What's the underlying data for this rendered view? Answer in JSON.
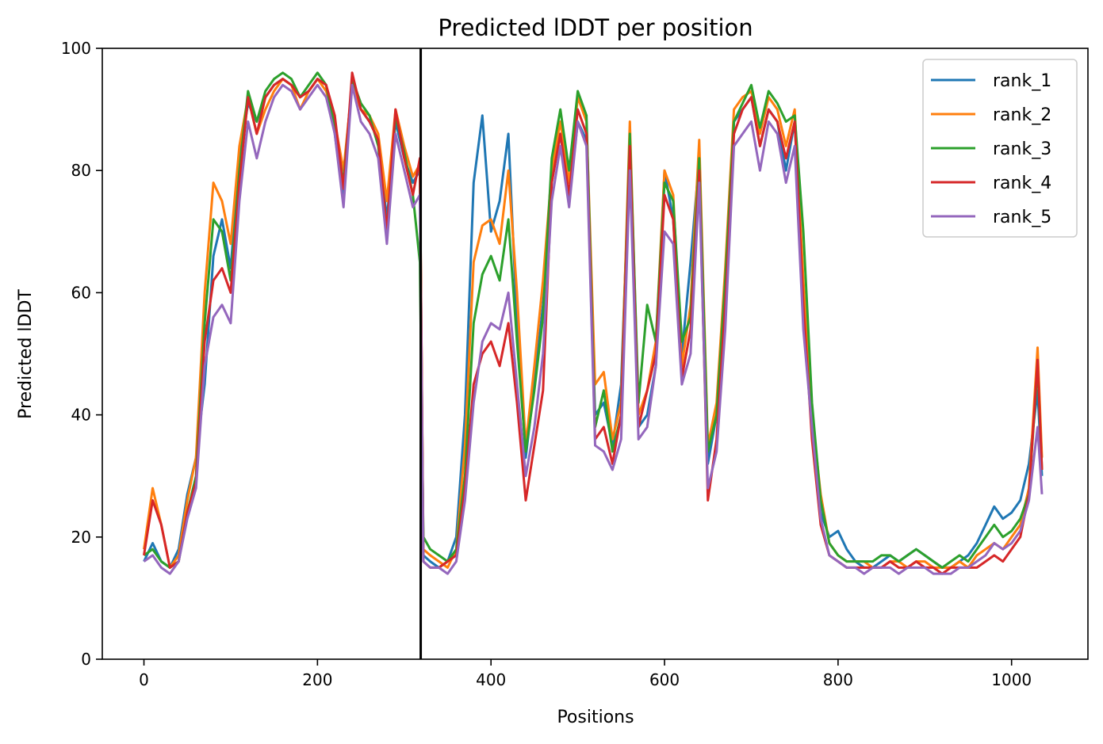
{
  "chart_data": {
    "type": "line",
    "title": "Predicted lDDT per position",
    "xlabel": "Positions",
    "ylabel": "Predicted lDDT",
    "xlim": [
      -48,
      1088
    ],
    "ylim": [
      0,
      100
    ],
    "xticks": [
      0,
      200,
      400,
      600,
      800,
      1000
    ],
    "yticks": [
      0,
      20,
      40,
      60,
      80,
      100
    ],
    "grid": false,
    "legend": "top-right",
    "vline_x": 319,
    "series": [
      {
        "name": "rank_1",
        "color": "#1f77b4",
        "x": [
          0,
          10,
          20,
          30,
          40,
          50,
          60,
          70,
          80,
          90,
          100,
          110,
          120,
          130,
          140,
          150,
          160,
          170,
          180,
          190,
          200,
          210,
          220,
          230,
          240,
          250,
          260,
          270,
          280,
          290,
          300,
          310,
          318,
          322,
          330,
          340,
          350,
          360,
          370,
          380,
          390,
          400,
          410,
          420,
          430,
          440,
          450,
          460,
          470,
          480,
          490,
          500,
          510,
          520,
          530,
          540,
          550,
          560,
          570,
          580,
          590,
          600,
          610,
          620,
          630,
          640,
          650,
          660,
          670,
          680,
          690,
          700,
          710,
          720,
          730,
          740,
          750,
          760,
          770,
          780,
          790,
          800,
          810,
          820,
          830,
          840,
          850,
          860,
          870,
          880,
          890,
          900,
          910,
          920,
          930,
          940,
          950,
          960,
          970,
          980,
          990,
          1000,
          1010,
          1020,
          1030,
          1035
        ],
        "y": [
          16,
          19,
          16,
          15,
          18,
          27,
          33,
          45,
          66,
          72,
          64,
          82,
          91,
          88,
          92,
          94,
          95,
          94,
          92,
          93,
          95,
          94,
          86,
          75,
          95,
          90,
          88,
          85,
          72,
          88,
          82,
          78,
          80,
          17,
          16,
          15,
          16,
          20,
          40,
          78,
          89,
          70,
          75,
          86,
          55,
          33,
          45,
          58,
          78,
          86,
          75,
          88,
          85,
          40,
          42,
          35,
          45,
          84,
          38,
          40,
          48,
          80,
          72,
          50,
          65,
          82,
          32,
          40,
          60,
          88,
          90,
          92,
          84,
          90,
          88,
          80,
          88,
          60,
          38,
          24,
          20,
          21,
          18,
          16,
          15,
          15,
          16,
          17,
          16,
          17,
          18,
          17,
          16,
          15,
          15,
          16,
          17,
          19,
          22,
          25,
          23,
          24,
          26,
          32,
          44,
          30
        ]
      },
      {
        "name": "rank_2",
        "color": "#ff7f0e",
        "x": [
          0,
          10,
          20,
          30,
          40,
          50,
          60,
          70,
          80,
          90,
          100,
          110,
          120,
          130,
          140,
          150,
          160,
          170,
          180,
          190,
          200,
          210,
          220,
          230,
          240,
          250,
          260,
          270,
          280,
          290,
          300,
          310,
          318,
          322,
          330,
          340,
          350,
          360,
          370,
          380,
          390,
          400,
          410,
          420,
          430,
          440,
          450,
          460,
          470,
          480,
          490,
          500,
          510,
          520,
          530,
          540,
          550,
          560,
          570,
          580,
          590,
          600,
          610,
          620,
          630,
          640,
          650,
          660,
          670,
          680,
          690,
          700,
          710,
          720,
          730,
          740,
          750,
          760,
          770,
          780,
          790,
          800,
          810,
          820,
          830,
          840,
          850,
          860,
          870,
          880,
          890,
          900,
          910,
          920,
          930,
          940,
          950,
          960,
          970,
          980,
          990,
          1000,
          1010,
          1020,
          1030,
          1035
        ],
        "y": [
          18,
          28,
          22,
          15,
          17,
          26,
          33,
          60,
          78,
          75,
          68,
          84,
          92,
          86,
          90,
          93,
          95,
          94,
          90,
          93,
          95,
          93,
          88,
          80,
          94,
          90,
          89,
          86,
          75,
          90,
          84,
          79,
          81,
          18,
          17,
          16,
          15,
          18,
          35,
          65,
          71,
          72,
          68,
          80,
          60,
          35,
          48,
          62,
          80,
          88,
          78,
          92,
          88,
          45,
          47,
          36,
          42,
          88,
          40,
          44,
          52,
          80,
          76,
          48,
          58,
          85,
          35,
          42,
          64,
          90,
          92,
          93,
          86,
          92,
          90,
          84,
          90,
          62,
          40,
          27,
          19,
          17,
          16,
          16,
          16,
          15,
          15,
          16,
          16,
          15,
          16,
          16,
          15,
          15,
          15,
          16,
          15,
          17,
          18,
          19,
          18,
          20,
          22,
          28,
          51,
          33
        ]
      },
      {
        "name": "rank_3",
        "color": "#2ca02c",
        "x": [
          0,
          10,
          20,
          30,
          40,
          50,
          60,
          70,
          80,
          90,
          100,
          110,
          120,
          130,
          140,
          150,
          160,
          170,
          180,
          190,
          200,
          210,
          220,
          230,
          240,
          250,
          260,
          270,
          280,
          290,
          300,
          310,
          318,
          322,
          330,
          340,
          350,
          360,
          370,
          380,
          390,
          400,
          410,
          420,
          430,
          440,
          450,
          460,
          470,
          480,
          490,
          500,
          510,
          520,
          530,
          540,
          550,
          560,
          570,
          580,
          590,
          600,
          610,
          620,
          630,
          640,
          650,
          660,
          670,
          680,
          690,
          700,
          710,
          720,
          730,
          740,
          750,
          760,
          770,
          780,
          790,
          800,
          810,
          820,
          830,
          840,
          850,
          860,
          870,
          880,
          890,
          900,
          910,
          920,
          930,
          940,
          950,
          960,
          970,
          980,
          990,
          1000,
          1010,
          1020,
          1030,
          1035
        ],
        "y": [
          17,
          18,
          16,
          15,
          16,
          24,
          30,
          55,
          72,
          70,
          62,
          80,
          93,
          88,
          93,
          95,
          96,
          95,
          92,
          94,
          96,
          94,
          87,
          78,
          95,
          91,
          89,
          84,
          70,
          89,
          83,
          76,
          65,
          20,
          18,
          17,
          16,
          18,
          30,
          55,
          63,
          66,
          62,
          72,
          52,
          34,
          44,
          56,
          82,
          90,
          80,
          93,
          89,
          38,
          44,
          34,
          40,
          86,
          42,
          58,
          52,
          78,
          75,
          52,
          56,
          82,
          34,
          40,
          62,
          88,
          91,
          94,
          87,
          93,
          91,
          88,
          89,
          70,
          42,
          26,
          19,
          17,
          16,
          16,
          16,
          16,
          17,
          17,
          16,
          17,
          18,
          17,
          16,
          15,
          16,
          17,
          16,
          18,
          20,
          22,
          20,
          21,
          23,
          27,
          48,
          31
        ]
      },
      {
        "name": "rank_4",
        "color": "#d62728",
        "x": [
          0,
          10,
          20,
          30,
          40,
          50,
          60,
          70,
          80,
          90,
          100,
          110,
          120,
          130,
          140,
          150,
          160,
          170,
          180,
          190,
          200,
          210,
          220,
          230,
          240,
          250,
          260,
          270,
          280,
          290,
          300,
          310,
          318,
          322,
          330,
          340,
          350,
          360,
          370,
          380,
          390,
          400,
          410,
          420,
          430,
          440,
          450,
          460,
          470,
          480,
          490,
          500,
          510,
          520,
          530,
          540,
          550,
          560,
          570,
          580,
          590,
          600,
          610,
          620,
          630,
          640,
          650,
          660,
          670,
          680,
          690,
          700,
          710,
          720,
          730,
          740,
          750,
          760,
          770,
          780,
          790,
          800,
          810,
          820,
          830,
          840,
          850,
          860,
          870,
          880,
          890,
          900,
          910,
          920,
          930,
          940,
          950,
          960,
          970,
          980,
          990,
          1000,
          1010,
          1020,
          1030,
          1035
        ],
        "y": [
          17,
          26,
          22,
          15,
          16,
          24,
          29,
          52,
          62,
          64,
          60,
          78,
          92,
          86,
          92,
          94,
          95,
          94,
          92,
          93,
          95,
          94,
          89,
          77,
          96,
          90,
          88,
          85,
          70,
          90,
          82,
          76,
          82,
          16,
          15,
          15,
          16,
          17,
          28,
          45,
          50,
          52,
          48,
          55,
          42,
          26,
          35,
          44,
          78,
          86,
          76,
          90,
          86,
          36,
          38,
          32,
          40,
          84,
          38,
          44,
          50,
          76,
          72,
          46,
          54,
          80,
          26,
          36,
          58,
          86,
          90,
          92,
          84,
          90,
          88,
          82,
          88,
          58,
          36,
          22,
          17,
          16,
          15,
          15,
          15,
          15,
          15,
          16,
          15,
          15,
          16,
          15,
          15,
          14,
          15,
          15,
          15,
          15,
          16,
          17,
          16,
          18,
          20,
          27,
          49,
          31
        ]
      },
      {
        "name": "rank_5",
        "color": "#9467bd",
        "x": [
          0,
          10,
          20,
          30,
          40,
          50,
          60,
          70,
          80,
          90,
          100,
          110,
          120,
          130,
          140,
          150,
          160,
          170,
          180,
          190,
          200,
          210,
          220,
          230,
          240,
          250,
          260,
          270,
          280,
          290,
          300,
          310,
          318,
          322,
          330,
          340,
          350,
          360,
          370,
          380,
          390,
          400,
          410,
          420,
          430,
          440,
          450,
          460,
          470,
          480,
          490,
          500,
          510,
          520,
          530,
          540,
          550,
          560,
          570,
          580,
          590,
          600,
          610,
          620,
          630,
          640,
          650,
          660,
          670,
          680,
          690,
          700,
          710,
          720,
          730,
          740,
          750,
          760,
          770,
          780,
          790,
          800,
          810,
          820,
          830,
          840,
          850,
          860,
          870,
          880,
          890,
          900,
          910,
          920,
          930,
          940,
          950,
          960,
          970,
          980,
          990,
          1000,
          1010,
          1020,
          1030,
          1035
        ],
        "y": [
          16,
          17,
          15,
          14,
          16,
          23,
          28,
          48,
          56,
          58,
          55,
          75,
          88,
          82,
          88,
          92,
          94,
          93,
          90,
          92,
          94,
          92,
          86,
          74,
          94,
          88,
          86,
          82,
          68,
          86,
          80,
          74,
          76,
          16,
          15,
          15,
          14,
          16,
          26,
          42,
          52,
          55,
          54,
          60,
          45,
          30,
          38,
          50,
          75,
          84,
          74,
          88,
          84,
          35,
          34,
          31,
          36,
          80,
          36,
          38,
          48,
          70,
          68,
          45,
          50,
          78,
          28,
          34,
          54,
          84,
          86,
          88,
          80,
          88,
          86,
          78,
          84,
          54,
          38,
          23,
          17,
          16,
          15,
          15,
          14,
          15,
          15,
          15,
          14,
          15,
          15,
          15,
          14,
          14,
          14,
          15,
          15,
          16,
          17,
          19,
          18,
          19,
          21,
          26,
          38,
          27
        ]
      }
    ]
  }
}
